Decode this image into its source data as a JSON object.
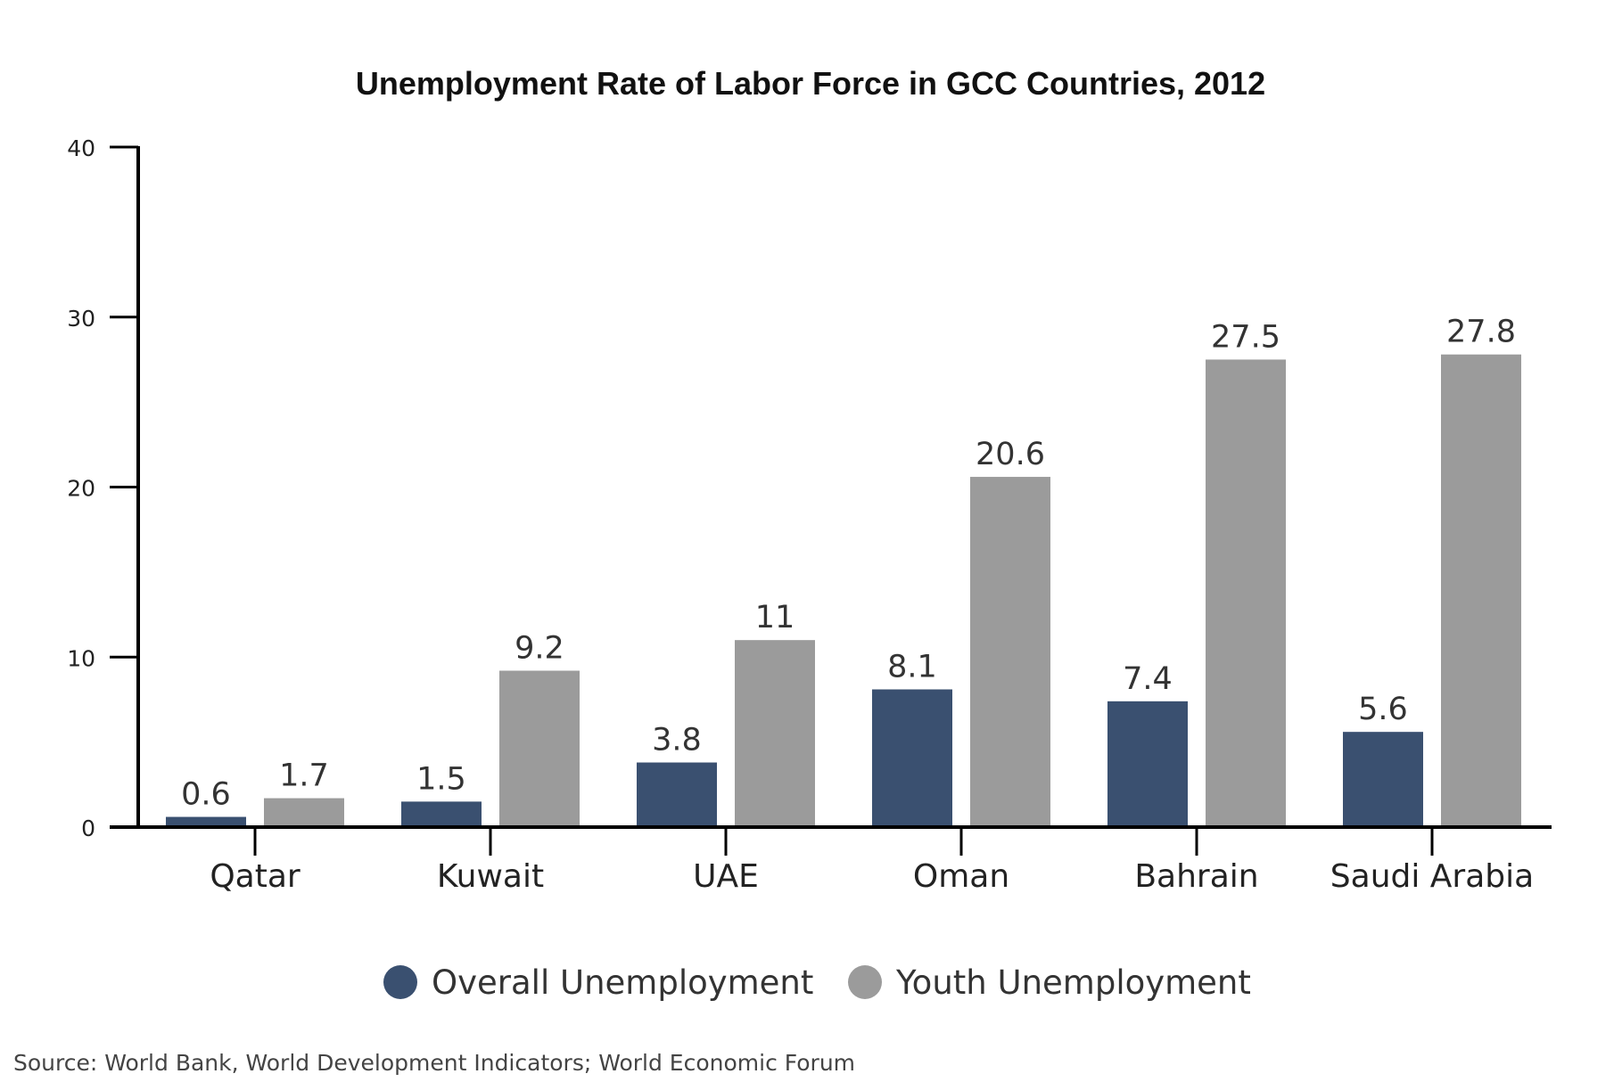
{
  "chart_data": {
    "type": "bar",
    "title": "Unemployment Rate of Labor Force in GCC Countries, 2012",
    "categories": [
      "Qatar",
      "Kuwait",
      "UAE",
      "Oman",
      "Bahrain",
      "Saudi Arabia"
    ],
    "series": [
      {
        "name": "Overall Unemployment",
        "color": "#3a5070",
        "values": [
          0.6,
          1.5,
          3.8,
          8.1,
          7.4,
          5.6
        ],
        "labels": [
          "0.6",
          "1.5",
          "3.8",
          "8.1",
          "7.4",
          "5.6"
        ]
      },
      {
        "name": "Youth Unemployment",
        "color": "#9b9b9b",
        "values": [
          1.7,
          9.2,
          11,
          20.6,
          27.5,
          27.8
        ],
        "labels": [
          "1.7",
          "9.2",
          "11",
          "20.6",
          "27.5",
          "27.8"
        ]
      }
    ],
    "yticks": [
      "0",
      "10",
      "20",
      "30",
      "40"
    ],
    "ylim": [
      0,
      40
    ],
    "grid": false,
    "legend": "bottom-center",
    "source": "Source: World Bank, World Development Indicators; World Economic Forum"
  }
}
